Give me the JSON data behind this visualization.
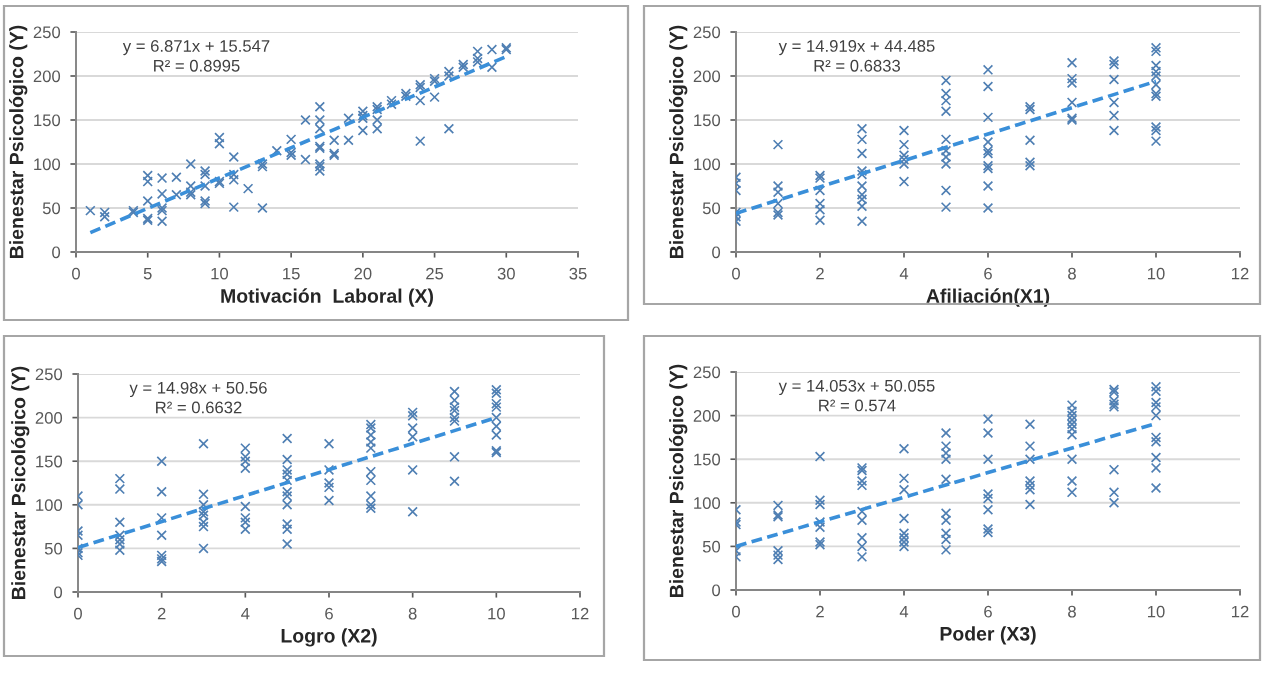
{
  "chart_data": [
    {
      "type": "scatter",
      "xlabel": "Motivación  Laboral (X)",
      "ylabel": "Bienestar Psicológico (Y)",
      "annotations": [
        "y = 6.871x + 15.547",
        "R² = 0.8995"
      ],
      "xlim": [
        0,
        35
      ],
      "xticks": [
        0,
        5,
        10,
        15,
        20,
        25,
        30,
        35
      ],
      "ylim": [
        0,
        250
      ],
      "yticks": [
        0,
        50,
        100,
        150,
        200,
        250
      ],
      "grid": "y",
      "legend": false,
      "series": [
        {
          "marker": "cross",
          "color": "#4f7fb3",
          "x": [
            1,
            2,
            2,
            4,
            4,
            5,
            5,
            5,
            5,
            5,
            6,
            6,
            6,
            6,
            6,
            7,
            7,
            8,
            8,
            8,
            8,
            9,
            9,
            9,
            9,
            9,
            10,
            10,
            10,
            10,
            11,
            11,
            11,
            11,
            12,
            13,
            13,
            13,
            14,
            15,
            15,
            15,
            16,
            16,
            17,
            17,
            17,
            17,
            17,
            17,
            17,
            17,
            18,
            18,
            18,
            19,
            19,
            20,
            20,
            20,
            20,
            21,
            21,
            21,
            21,
            22,
            22,
            23,
            23,
            24,
            24,
            24,
            24,
            25,
            25,
            25,
            26,
            26,
            26,
            27,
            27,
            28,
            28,
            28,
            29,
            29,
            30,
            30
          ],
          "values": [
            47,
            40,
            45,
            47,
            45,
            87,
            80,
            58,
            38,
            36,
            84,
            66,
            50,
            47,
            35,
            85,
            65,
            100,
            75,
            68,
            65,
            92,
            88,
            75,
            58,
            55,
            130,
            123,
            80,
            78,
            108,
            88,
            82,
            51,
            72,
            100,
            97,
            50,
            115,
            128,
            113,
            110,
            150,
            105,
            165,
            150,
            140,
            120,
            118,
            100,
            97,
            92,
            127,
            112,
            110,
            152,
            127,
            160,
            155,
            152,
            138,
            165,
            162,
            150,
            140,
            172,
            168,
            180,
            177,
            190,
            187,
            172,
            126,
            197,
            194,
            176,
            205,
            200,
            140,
            213,
            210,
            228,
            220,
            216,
            230,
            210,
            232,
            230
          ]
        },
        {
          "type": "line",
          "line_style": "dashed",
          "color": "#3a8fd9",
          "x": [
            1,
            30
          ],
          "values": [
            22,
            222
          ]
        }
      ]
    },
    {
      "type": "scatter",
      "xlabel": "Afiliación(X1)",
      "ylabel": "Bienestar Psicológico (Y)",
      "annotations": [
        "y = 14.919x + 44.485",
        "R² = 0.6833"
      ],
      "xlim": [
        0,
        12
      ],
      "xticks": [
        0,
        2,
        4,
        6,
        8,
        10,
        12
      ],
      "ylim": [
        0,
        250
      ],
      "yticks": [
        0,
        50,
        100,
        150,
        200,
        250
      ],
      "grid": "y",
      "legend": false,
      "series": [
        {
          "marker": "cross",
          "color": "#4f7fb3",
          "x": [
            0,
            0,
            0,
            0,
            0,
            0,
            1,
            1,
            1,
            1,
            1,
            1,
            2,
            2,
            2,
            2,
            2,
            2,
            3,
            3,
            3,
            3,
            3,
            3,
            3,
            3,
            3,
            3,
            4,
            4,
            4,
            4,
            4,
            4,
            5,
            5,
            5,
            5,
            5,
            5,
            5,
            5,
            5,
            5,
            6,
            6,
            6,
            6,
            6,
            6,
            6,
            6,
            6,
            6,
            7,
            7,
            7,
            7,
            7,
            8,
            8,
            8,
            8,
            8,
            8,
            9,
            9,
            9,
            9,
            9,
            9,
            10,
            10,
            10,
            10,
            10,
            10,
            10,
            10,
            10,
            10,
            10
          ],
          "values": [
            85,
            78,
            70,
            45,
            40,
            35,
            122,
            75,
            68,
            55,
            45,
            42,
            87,
            84,
            70,
            55,
            48,
            36,
            140,
            128,
            112,
            92,
            88,
            75,
            65,
            60,
            52,
            35,
            138,
            122,
            110,
            105,
            100,
            80,
            195,
            180,
            172,
            160,
            128,
            115,
            108,
            100,
            70,
            51,
            207,
            188,
            153,
            125,
            115,
            112,
            98,
            95,
            75,
            50,
            165,
            162,
            127,
            102,
            98,
            215,
            197,
            192,
            170,
            152,
            150,
            217,
            213,
            196,
            170,
            155,
            138,
            232,
            228,
            212,
            205,
            200,
            190,
            180,
            177,
            142,
            138,
            126
          ]
        },
        {
          "type": "line",
          "line_style": "dashed",
          "color": "#3a8fd9",
          "x": [
            0,
            10
          ],
          "values": [
            44,
            194
          ]
        }
      ]
    },
    {
      "type": "scatter",
      "xlabel": "Logro (X2)",
      "ylabel": "Bienestar Psicológico (Y)",
      "annotations": [
        "y = 14.98x + 50.56",
        "R² = 0.6632"
      ],
      "xlim": [
        0,
        12
      ],
      "xticks": [
        0,
        2,
        4,
        6,
        8,
        10,
        12
      ],
      "ylim": [
        0,
        250
      ],
      "yticks": [
        0,
        50,
        100,
        150,
        200,
        250
      ],
      "grid": "y",
      "legend": false,
      "series": [
        {
          "marker": "cross",
          "color": "#4f7fb3",
          "x": [
            0,
            0,
            0,
            0,
            0,
            0,
            0,
            1,
            1,
            1,
            1,
            1,
            1,
            1,
            2,
            2,
            2,
            2,
            2,
            2,
            2,
            3,
            3,
            3,
            3,
            3,
            3,
            3,
            3,
            4,
            4,
            4,
            4,
            4,
            4,
            4,
            4,
            5,
            5,
            5,
            5,
            5,
            5,
            5,
            5,
            5,
            5,
            5,
            6,
            6,
            6,
            6,
            6,
            7,
            7,
            7,
            7,
            7,
            7,
            7,
            7,
            7,
            7,
            8,
            8,
            8,
            8,
            8,
            8,
            9,
            9,
            9,
            9,
            9,
            9,
            9,
            9,
            10,
            10,
            10,
            10,
            10,
            10,
            10,
            10,
            10
          ],
          "values": [
            110,
            100,
            70,
            65,
            50,
            45,
            42,
            130,
            118,
            80,
            65,
            60,
            55,
            48,
            150,
            115,
            85,
            65,
            42,
            38,
            35,
            170,
            112,
            100,
            92,
            88,
            80,
            75,
            50,
            165,
            155,
            150,
            142,
            98,
            85,
            80,
            72,
            176,
            152,
            140,
            135,
            128,
            115,
            110,
            100,
            78,
            72,
            55,
            170,
            140,
            125,
            120,
            105,
            192,
            188,
            180,
            172,
            165,
            138,
            128,
            110,
            100,
            96,
            206,
            202,
            188,
            178,
            140,
            92,
            230,
            220,
            212,
            208,
            200,
            196,
            155,
            127,
            232,
            228,
            216,
            212,
            200,
            190,
            180,
            162,
            160
          ]
        },
        {
          "type": "line",
          "line_style": "dashed",
          "color": "#3a8fd9",
          "x": [
            0,
            10
          ],
          "values": [
            51,
            200
          ]
        }
      ]
    },
    {
      "type": "scatter",
      "xlabel": "Poder (X3)",
      "ylabel": "Bienestar Psicológico (Y)",
      "annotations": [
        "y = 14.053x + 50.055",
        "R² = 0.574"
      ],
      "xlim": [
        0,
        12
      ],
      "xticks": [
        0,
        2,
        4,
        6,
        8,
        10,
        12
      ],
      "ylim": [
        0,
        250
      ],
      "yticks": [
        0,
        50,
        100,
        150,
        200,
        250
      ],
      "grid": "y",
      "legend": false,
      "series": [
        {
          "marker": "cross",
          "color": "#4f7fb3",
          "x": [
            0,
            0,
            0,
            0,
            0,
            1,
            1,
            1,
            1,
            1,
            1,
            2,
            2,
            2,
            2,
            2,
            2,
            2,
            3,
            3,
            3,
            3,
            3,
            3,
            3,
            3,
            3,
            4,
            4,
            4,
            4,
            4,
            4,
            4,
            4,
            5,
            5,
            5,
            5,
            5,
            5,
            5,
            5,
            5,
            5,
            6,
            6,
            6,
            6,
            6,
            6,
            6,
            6,
            7,
            7,
            7,
            7,
            7,
            7,
            7,
            8,
            8,
            8,
            8,
            8,
            8,
            8,
            8,
            8,
            8,
            9,
            9,
            9,
            9,
            9,
            9,
            9,
            9,
            10,
            10,
            10,
            10,
            10,
            10,
            10,
            10,
            10,
            10
          ],
          "values": [
            92,
            78,
            75,
            45,
            38,
            97,
            86,
            84,
            45,
            40,
            35,
            153,
            103,
            98,
            78,
            72,
            55,
            52,
            140,
            137,
            125,
            120,
            90,
            80,
            60,
            50,
            38,
            162,
            128,
            115,
            82,
            65,
            60,
            55,
            50,
            180,
            165,
            157,
            150,
            127,
            88,
            80,
            65,
            58,
            46,
            196,
            180,
            150,
            110,
            105,
            92,
            70,
            66,
            190,
            165,
            150,
            125,
            120,
            115,
            98,
            212,
            205,
            200,
            195,
            190,
            185,
            178,
            150,
            125,
            112,
            230,
            227,
            217,
            213,
            210,
            138,
            112,
            100,
            233,
            228,
            215,
            210,
            200,
            175,
            170,
            152,
            140,
            117
          ]
        },
        {
          "type": "line",
          "line_style": "dashed",
          "color": "#3a8fd9",
          "x": [
            0,
            10
          ],
          "values": [
            50,
            191
          ]
        }
      ]
    }
  ]
}
